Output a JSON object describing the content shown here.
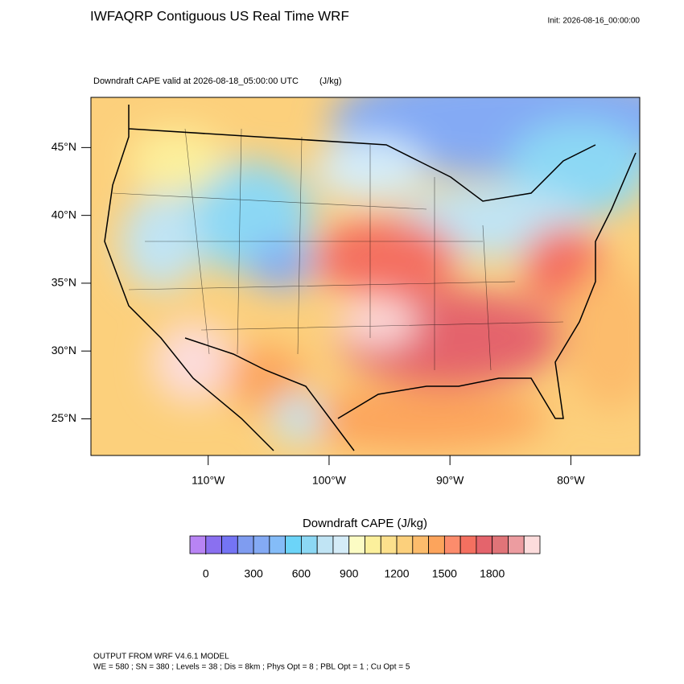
{
  "header": {
    "title": "IWFAQRP Contiguous US Real Time WRF",
    "init": "Init: 2026-08-16_00:00:00",
    "subtitle": "Downdraft CAPE valid at 2026-08-18_05:00:00 UTC",
    "units": "(J/kg)"
  },
  "map": {
    "xlim": [
      -119.7,
      -74.3
    ],
    "ylim": [
      22.3,
      48.7
    ],
    "yticks": [
      {
        "value": 45,
        "label": "45°N"
      },
      {
        "value": 40,
        "label": "40°N"
      },
      {
        "value": 35,
        "label": "35°N"
      },
      {
        "value": 30,
        "label": "30°N"
      },
      {
        "value": 25,
        "label": "25°N"
      }
    ],
    "xticks": [
      {
        "value": -110,
        "label": "110°W"
      },
      {
        "value": -100,
        "label": "100°W"
      },
      {
        "value": -90,
        "label": "90°W"
      },
      {
        "value": -80,
        "label": "80°W"
      }
    ]
  },
  "colorbar": {
    "label": "Downdraft CAPE  (J/kg)",
    "lim": [
      -100,
      2100
    ],
    "colors": [
      "#b884f4",
      "#8a70f0",
      "#7474f4",
      "#7f9cf0",
      "#84aaf4",
      "#84bcf8",
      "#6cd4f8",
      "#8cd8f4",
      "#c0e4f4",
      "#d4ecf8",
      "#fcfcc4",
      "#fcf09c",
      "#fce08c",
      "#fcd07c",
      "#fcbc6c",
      "#fca45c",
      "#fc8c6c",
      "#f47060",
      "#e4646c",
      "#e07478",
      "#ec9ca0",
      "#fcdcdc"
    ],
    "ticks": [
      0,
      300,
      600,
      900,
      1200,
      1500,
      1800
    ]
  },
  "footer": {
    "line1": "OUTPUT FROM WRF V4.6.1 MODEL",
    "line2": "WE = 580 ; SN = 380 ; Levels = 38 ; Dis = 8km ; Phys Opt = 8 ; PBL Opt = 1 ; Cu Opt = 5"
  }
}
